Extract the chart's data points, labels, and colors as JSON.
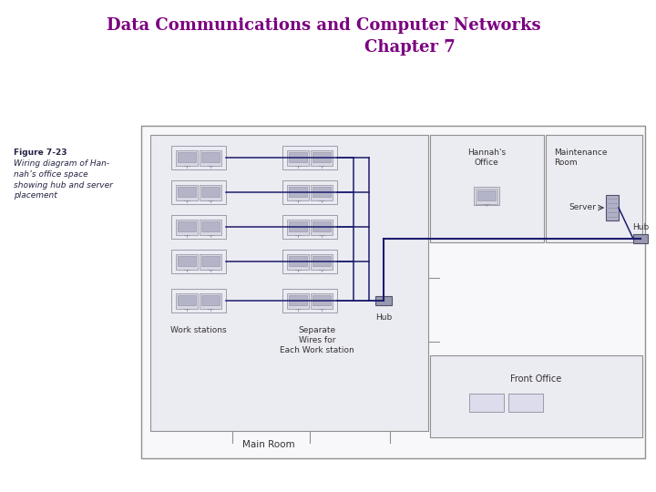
{
  "title_line1": "Data Communications and Computer Networks",
  "title_line2": "Chapter 7",
  "title_color": "#7b0080",
  "fig_label": "Figure 7-23",
  "fig_caption": "Wiring diagram of Han-\nnah’s office space\nshowing hub and server\nplacement",
  "bg_color": "#ffffff",
  "room_fill": "#f2f2f6",
  "room_edge": "#909090",
  "ws_fill": "#d8d8e4",
  "ws_edge": "#9090a0",
  "hub_fill": "#9898b0",
  "hub_edge": "#505068",
  "server_fill": "#b0b0c8",
  "line_color": "#1c1c6e",
  "text_color": "#333333",
  "dark_text": "#222244",
  "line1_fontsize": 13,
  "line2_fontsize": 13
}
